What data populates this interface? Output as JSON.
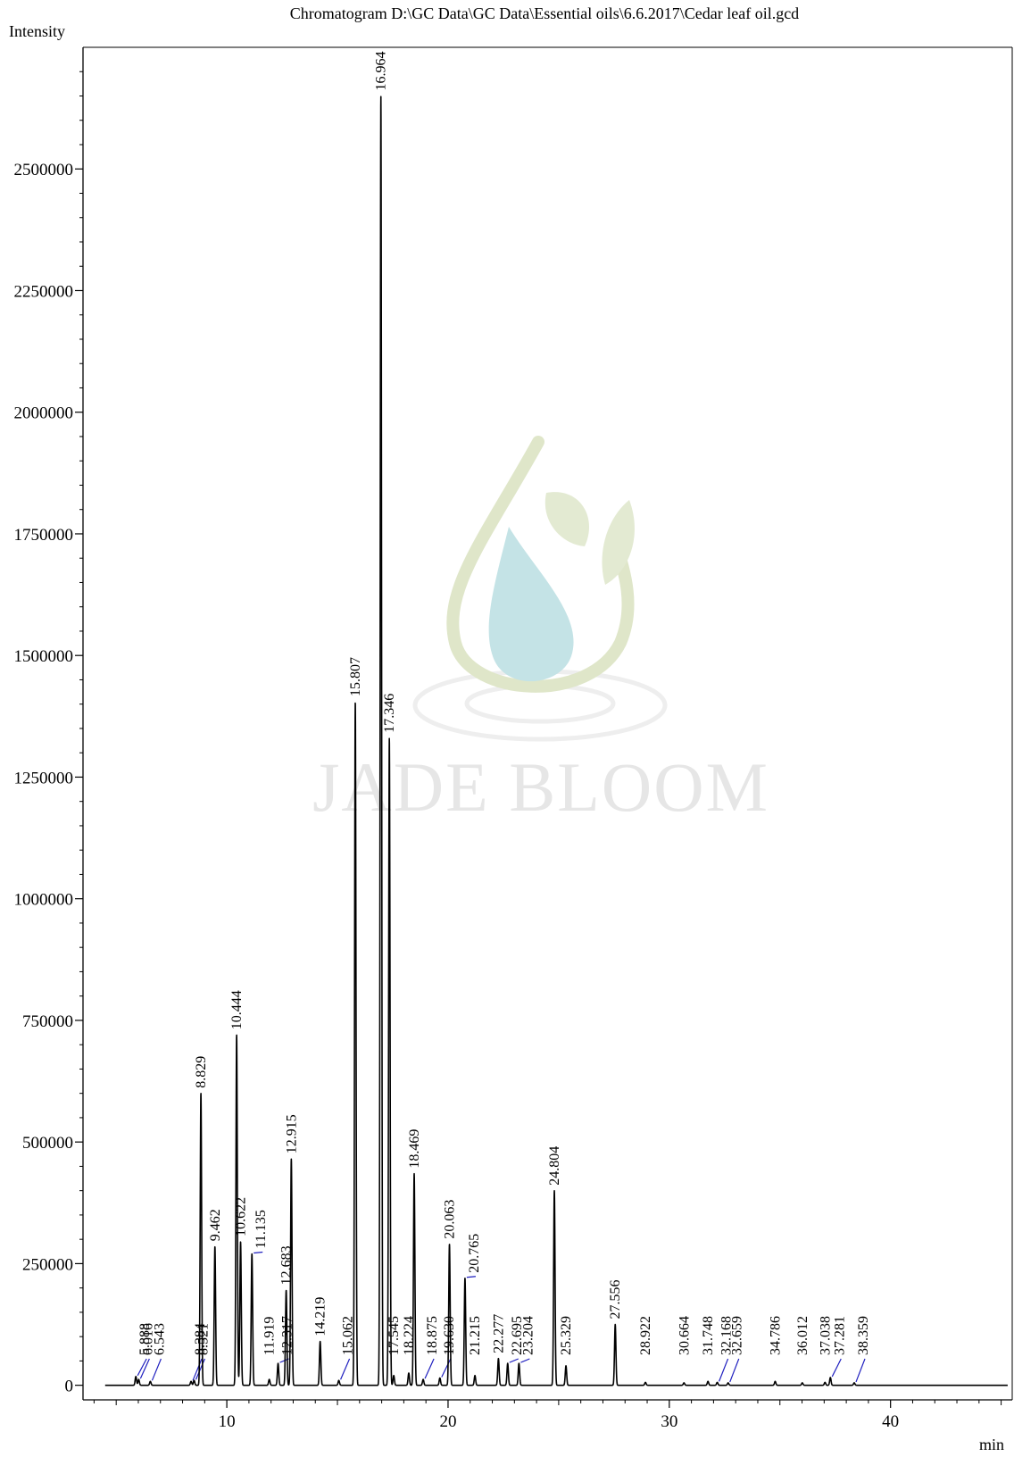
{
  "chart_data": {
    "type": "line",
    "title": "Chromatogram D:\\GC Data\\GC Data\\Essential oils\\6.6.2017\\Cedar leaf oil.gcd",
    "ylabel": "Intensity",
    "xlabel": "min",
    "xlim": [
      3.5,
      45.5
    ],
    "ylim": [
      -30000,
      2750000
    ],
    "x_ticks": [
      10,
      20,
      30,
      40
    ],
    "y_ticks": [
      0,
      250000,
      500000,
      750000,
      1000000,
      1250000,
      1500000,
      1750000,
      2000000,
      2250000,
      2500000
    ],
    "x_minor_step": 1,
    "y_minor_step": 50000,
    "grid": false,
    "legend": "none",
    "line_color": "#000000",
    "leader_color": "#1f1fbf",
    "series": [
      {
        "values": [
          {
            "x": 5.888,
            "y": 18000,
            "label": "5.888",
            "leader": true
          },
          {
            "x": 6.016,
            "y": 12000,
            "label": "6.016",
            "leader": true
          },
          {
            "x": 6.543,
            "y": 8000,
            "label": "6.543",
            "leader": true
          },
          {
            "x": 8.384,
            "y": 8000,
            "label": "8.384",
            "leader": true
          },
          {
            "x": 8.521,
            "y": 10000,
            "label": "8.521",
            "leader": true
          },
          {
            "x": 8.829,
            "y": 600000,
            "label": "8.829",
            "leader": false
          },
          {
            "x": 9.462,
            "y": 285000,
            "label": "9.462",
            "leader": false
          },
          {
            "x": 10.444,
            "y": 720000,
            "label": "10.444",
            "leader": false
          },
          {
            "x": 10.622,
            "y": 295000,
            "label": "10.622",
            "leader": false
          },
          {
            "x": 11.135,
            "y": 270000,
            "label": "11.135",
            "leader": true
          },
          {
            "x": 11.919,
            "y": 12000,
            "label": "11.919",
            "leader": false
          },
          {
            "x": 12.317,
            "y": 45000,
            "label": "12.317",
            "leader": true
          },
          {
            "x": 12.683,
            "y": 195000,
            "label": "12.683",
            "leader": false
          },
          {
            "x": 12.915,
            "y": 465000,
            "label": "12.915",
            "leader": false
          },
          {
            "x": 14.219,
            "y": 90000,
            "label": "14.219",
            "leader": false
          },
          {
            "x": 15.062,
            "y": 10000,
            "label": "15.062",
            "leader": true
          },
          {
            "x": 15.807,
            "y": 1405000,
            "label": "15.807",
            "leader": false
          },
          {
            "x": 16.964,
            "y": 2650000,
            "label": "16.964",
            "leader": false
          },
          {
            "x": 17.346,
            "y": 1330000,
            "label": "17.346",
            "leader": false
          },
          {
            "x": 17.545,
            "y": 20000,
            "label": "17.545",
            "leader": false
          },
          {
            "x": 18.224,
            "y": 25000,
            "label": "18.224",
            "leader": false
          },
          {
            "x": 18.469,
            "y": 435000,
            "label": "18.469",
            "leader": false
          },
          {
            "x": 18.875,
            "y": 12000,
            "label": "18.875",
            "leader": true
          },
          {
            "x": 19.63,
            "y": 15000,
            "label": "19.630",
            "leader": true
          },
          {
            "x": 20.063,
            "y": 290000,
            "label": "20.063",
            "leader": false
          },
          {
            "x": 20.765,
            "y": 220000,
            "label": "20.765",
            "leader": true
          },
          {
            "x": 21.215,
            "y": 20000,
            "label": "21.215",
            "leader": false
          },
          {
            "x": 22.277,
            "y": 55000,
            "label": "22.277",
            "leader": false
          },
          {
            "x": 22.695,
            "y": 45000,
            "label": "22.695",
            "leader": true
          },
          {
            "x": 23.204,
            "y": 45000,
            "label": "23.204",
            "leader": true
          },
          {
            "x": 24.804,
            "y": 400000,
            "label": "24.804",
            "leader": false
          },
          {
            "x": 25.329,
            "y": 40000,
            "label": "25.329",
            "leader": false
          },
          {
            "x": 27.556,
            "y": 125000,
            "label": "27.556",
            "leader": false
          },
          {
            "x": 28.922,
            "y": 6000,
            "label": "28.922",
            "leader": false
          },
          {
            "x": 30.664,
            "y": 5000,
            "label": "30.664",
            "leader": false
          },
          {
            "x": 31.748,
            "y": 8000,
            "label": "31.748",
            "leader": false
          },
          {
            "x": 32.168,
            "y": 6000,
            "label": "32.168",
            "leader": true
          },
          {
            "x": 32.659,
            "y": 5000,
            "label": "32.659",
            "leader": true
          },
          {
            "x": 34.786,
            "y": 8000,
            "label": "34.786",
            "leader": false
          },
          {
            "x": 36.012,
            "y": 5000,
            "label": "36.012",
            "leader": false
          },
          {
            "x": 37.038,
            "y": 6000,
            "label": "37.038",
            "leader": false
          },
          {
            "x": 37.281,
            "y": 16000,
            "label": "37.281",
            "leader": true
          },
          {
            "x": 38.359,
            "y": 5000,
            "label": "38.359",
            "leader": true
          }
        ]
      }
    ]
  },
  "watermark": {
    "text": "JADE BLOOM",
    "leaf_color": "#bfcf9a",
    "ring_color": "#eeeeee",
    "drop_color": "#a9d8dd"
  }
}
